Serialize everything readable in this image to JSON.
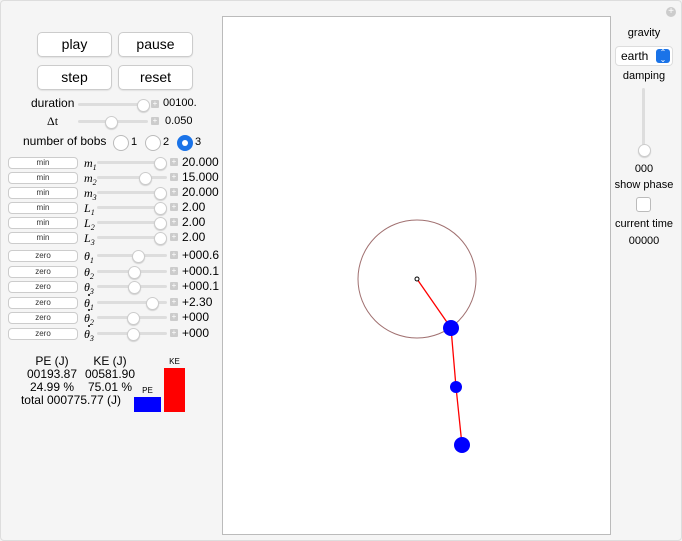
{
  "controls": {
    "play": "play",
    "pause": "pause",
    "step": "step",
    "reset": "reset"
  },
  "duration": {
    "label": "duration",
    "value": "00100.",
    "fraction": 0.97
  },
  "dt": {
    "label": "Δt",
    "value": "0.050",
    "fraction": 0.45
  },
  "bobs": {
    "label": "number of bobs",
    "options": [
      "1",
      "2",
      "3"
    ],
    "selected": "3"
  },
  "params": [
    {
      "button": "min",
      "var": "m",
      "sub": "1",
      "value": "20.000",
      "fraction": 0.97
    },
    {
      "button": "min",
      "var": "m",
      "sub": "2",
      "value": "15.000",
      "fraction": 0.72
    },
    {
      "button": "min",
      "var": "m",
      "sub": "3",
      "value": "20.000",
      "fraction": 0.97
    },
    {
      "button": "min",
      "var": "L",
      "sub": "1",
      "value": "2.00",
      "fraction": 0.97
    },
    {
      "button": "min",
      "var": "L",
      "sub": "2",
      "value": "2.00",
      "fraction": 0.97
    },
    {
      "button": "min",
      "var": "L",
      "sub": "3",
      "value": "2.00",
      "fraction": 0.97
    }
  ],
  "angles": [
    {
      "button": "zero",
      "var": "θ",
      "sub": "1",
      "dot": false,
      "value": "+000.6",
      "fraction": 0.59
    },
    {
      "button": "zero",
      "var": "θ",
      "sub": "2",
      "dot": false,
      "value": "+000.1",
      "fraction": 0.52
    },
    {
      "button": "zero",
      "var": "θ",
      "sub": "3",
      "dot": false,
      "value": "+000.1",
      "fraction": 0.52
    },
    {
      "button": "zero",
      "var": "θ",
      "sub": "1",
      "dot": true,
      "value": "+2.30",
      "fraction": 0.83
    },
    {
      "button": "zero",
      "var": "θ",
      "sub": "2",
      "dot": true,
      "value": "+000",
      "fraction": 0.5
    },
    {
      "button": "zero",
      "var": "θ",
      "sub": "3",
      "dot": true,
      "value": "+000",
      "fraction": 0.5
    }
  ],
  "energy": {
    "pe_header": "PE (J)",
    "ke_header": "KE (J)",
    "pe": "00193.87",
    "ke": "00581.90",
    "pe_pct": "24.99 %",
    "ke_pct": "75.01 %",
    "total": "total 000775.77 (J)",
    "bar_pe_label": "PE",
    "bar_ke_label": "KE",
    "pe_fraction": 0.2499,
    "ke_fraction": 0.7501,
    "pe_color": "#0000ff",
    "ke_color": "#ff0000"
  },
  "right": {
    "gravity_label": "gravity",
    "gravity_value": "earth",
    "damping_label": "damping",
    "damping_value": "000",
    "damping_fraction": 0,
    "show_phase_label": "show phase",
    "show_phase": false,
    "time_label": "current time",
    "time_value": "00000"
  },
  "colors": {
    "bob": "#0000ff",
    "rod": "#ff0000",
    "circle": "#a07070",
    "accent": "#1a73e8"
  }
}
